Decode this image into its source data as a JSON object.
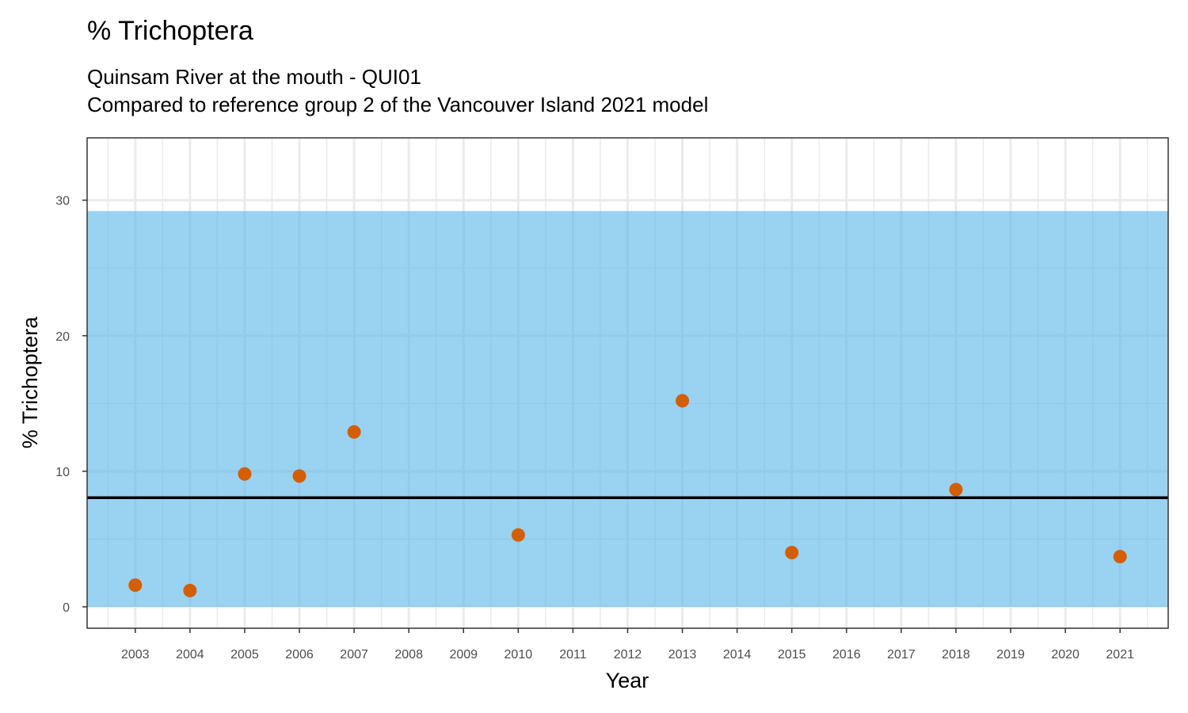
{
  "chart_data": {
    "type": "scatter",
    "title": "% Trichoptera",
    "subtitle": [
      "Quinsam River at the mouth - QUI01",
      "Compared to reference group 2 of the Vancouver Island 2021 model"
    ],
    "xlabel": "Year",
    "ylabel": "% Trichoptera",
    "xlim": [
      2002.12,
      2021.88
    ],
    "ylim": [
      -1.58,
      34.6
    ],
    "grid": true,
    "x_ticks": [
      2003,
      2004,
      2005,
      2006,
      2007,
      2008,
      2009,
      2010,
      2011,
      2012,
      2013,
      2014,
      2015,
      2016,
      2017,
      2018,
      2019,
      2020,
      2021
    ],
    "y_ticks": [
      0,
      10,
      20,
      30
    ],
    "reference_band": {
      "ymin": 0,
      "ymax": 29.2,
      "color": "#56B4E9"
    },
    "reference_line": {
      "y": 8.05,
      "color": "#000000"
    },
    "point_color": "#D55E00",
    "points": [
      {
        "x": 2003,
        "y": 1.6
      },
      {
        "x": 2004,
        "y": 1.2
      },
      {
        "x": 2005,
        "y": 9.8
      },
      {
        "x": 2006,
        "y": 9.65
      },
      {
        "x": 2007,
        "y": 12.9
      },
      {
        "x": 2010,
        "y": 5.3
      },
      {
        "x": 2013,
        "y": 15.2
      },
      {
        "x": 2015,
        "y": 4.0
      },
      {
        "x": 2018,
        "y": 8.65
      },
      {
        "x": 2021,
        "y": 3.7
      }
    ]
  }
}
